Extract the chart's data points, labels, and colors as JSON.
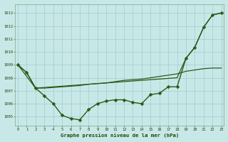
{
  "title": "Graphe pression niveau de la mer (hPa)",
  "bg_color": "#c8e8e8",
  "grid_color": "#a0cccc",
  "line_color": "#2a5a18",
  "text_color": "#1a4a0a",
  "xlim_min": -0.3,
  "xlim_max": 23.3,
  "ylim_min": 1004.3,
  "ylim_max": 1013.7,
  "yticks": [
    1005,
    1006,
    1007,
    1008,
    1009,
    1010,
    1011,
    1012,
    1013
  ],
  "xticks": [
    0,
    1,
    2,
    3,
    4,
    5,
    6,
    7,
    8,
    9,
    10,
    11,
    12,
    13,
    14,
    15,
    16,
    17,
    18,
    19,
    20,
    21,
    22,
    23
  ],
  "line1": {
    "x": [
      0,
      1,
      2,
      3,
      4,
      5,
      6,
      7,
      8,
      9,
      10,
      11,
      12,
      13,
      14,
      15,
      16,
      17,
      18,
      19,
      20,
      21,
      22,
      23
    ],
    "y": [
      1009.0,
      1008.4,
      1007.2,
      1006.6,
      1006.0,
      1005.1,
      1004.85,
      1004.75,
      1005.55,
      1006.0,
      1006.2,
      1006.3,
      1006.3,
      1006.1,
      1006.0,
      1006.7,
      1006.8,
      1007.3,
      1007.3,
      1009.5,
      1010.35,
      1011.9,
      1012.85,
      1013.0
    ],
    "marker": "D",
    "markersize": 2.5,
    "linewidth": 1.0
  },
  "line2": {
    "x": [
      0,
      1,
      2,
      3,
      4,
      5,
      6,
      7,
      8,
      9,
      10,
      11,
      12,
      13,
      14,
      15,
      16,
      17,
      18,
      19,
      20,
      21,
      22,
      23
    ],
    "y": [
      1009.0,
      1008.4,
      1007.2,
      1007.2,
      1007.25,
      1007.3,
      1007.35,
      1007.4,
      1007.5,
      1007.55,
      1007.6,
      1007.7,
      1007.8,
      1007.85,
      1007.9,
      1008.0,
      1008.1,
      1008.2,
      1008.3,
      1008.5,
      1008.6,
      1008.7,
      1008.75,
      1008.75
    ],
    "marker": "none",
    "linewidth": 0.9
  },
  "line3": {
    "x": [
      0,
      2,
      3,
      4,
      5,
      6,
      7,
      8,
      9,
      10,
      11,
      12,
      13,
      14,
      15,
      16,
      17,
      18,
      19,
      20,
      21,
      22,
      23
    ],
    "y": [
      1009.0,
      1007.2,
      1007.25,
      1007.3,
      1007.35,
      1007.4,
      1007.45,
      1007.5,
      1007.55,
      1007.6,
      1007.65,
      1007.7,
      1007.75,
      1007.8,
      1007.85,
      1007.9,
      1007.95,
      1008.0,
      1009.5,
      1010.35,
      1011.9,
      1012.85,
      1013.0
    ],
    "marker": "none",
    "linewidth": 0.9
  }
}
